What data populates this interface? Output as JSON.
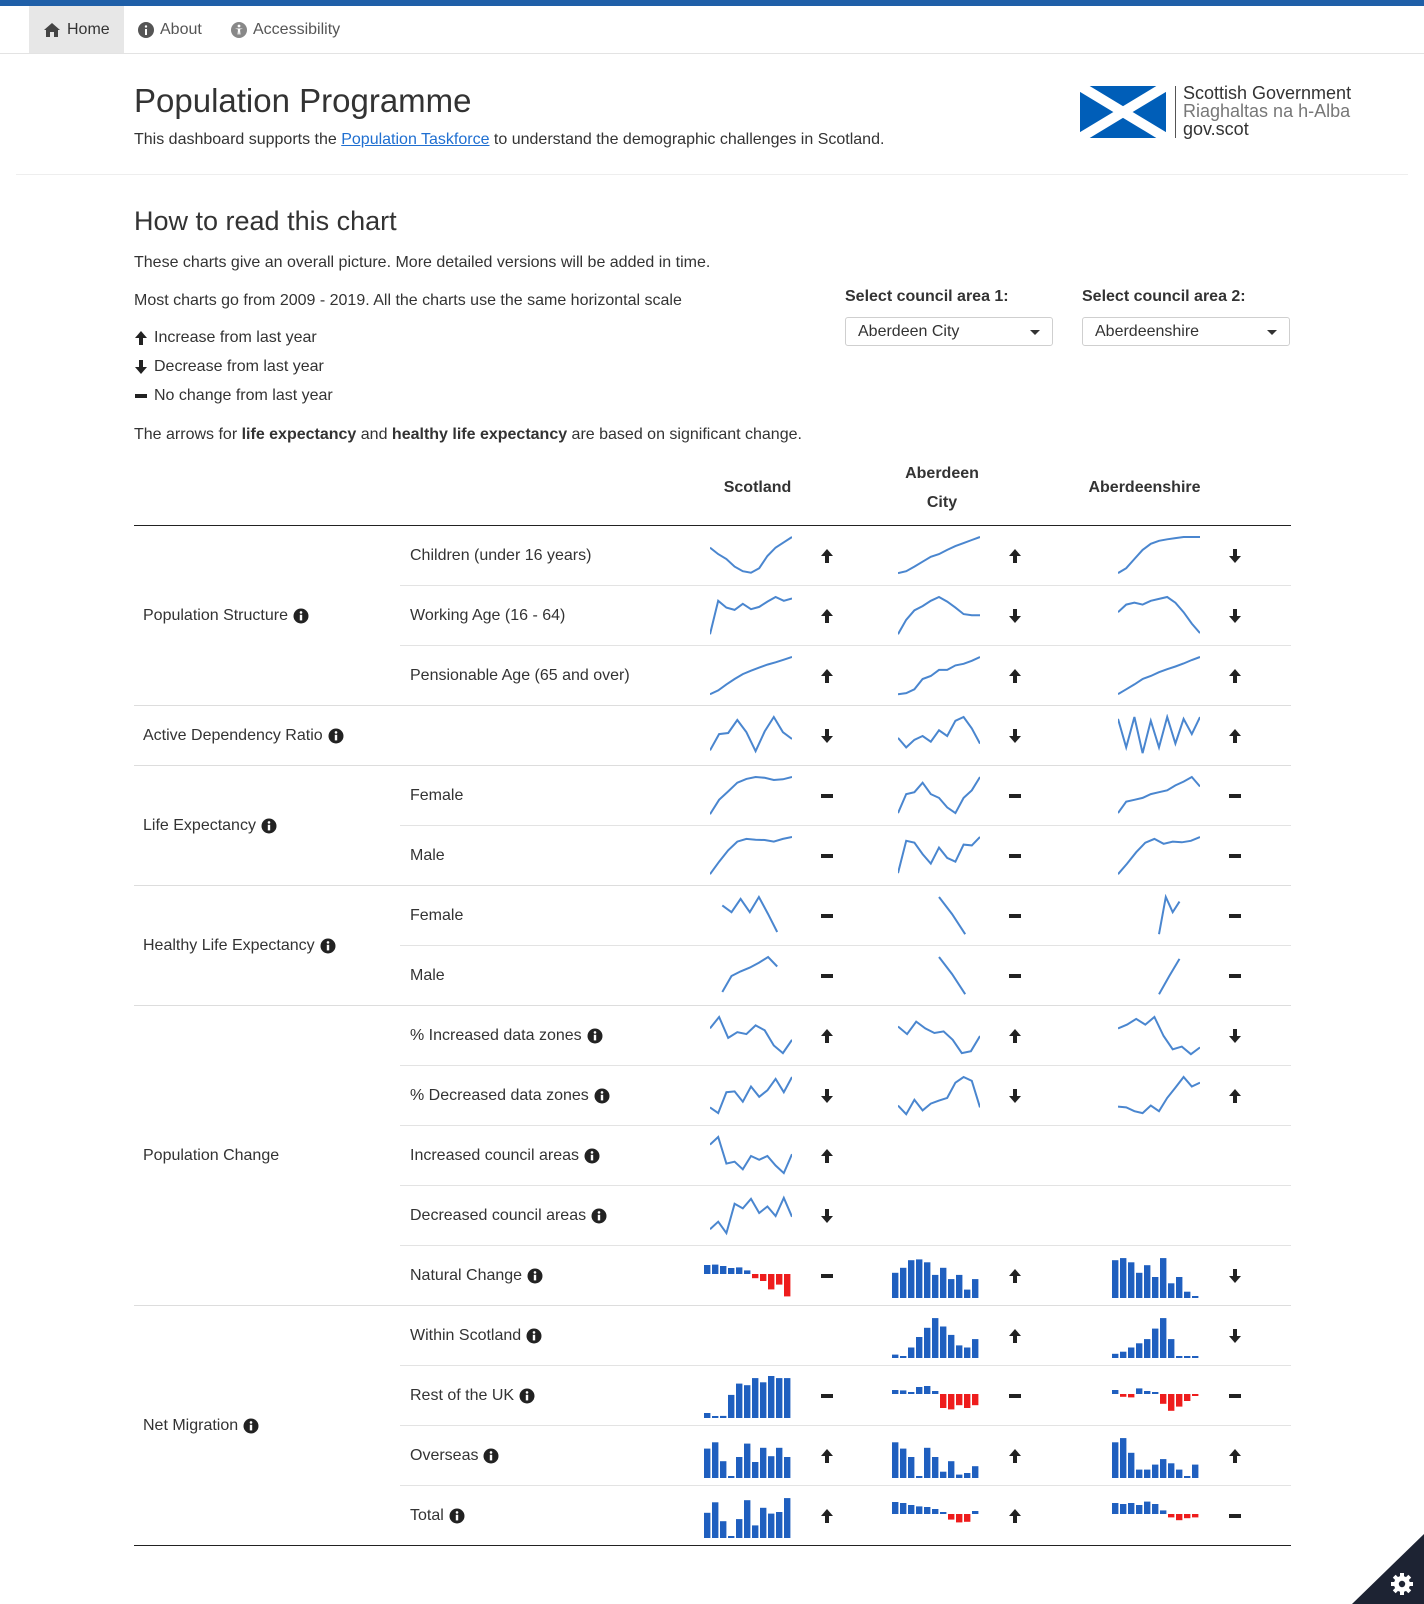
{
  "nav": {
    "items": [
      {
        "label": "Home",
        "icon": "home-icon",
        "active": true
      },
      {
        "label": "About",
        "icon": "info-icon",
        "active": false
      },
      {
        "label": "Accessibility",
        "icon": "accessibility-icon",
        "active": false
      }
    ]
  },
  "header": {
    "title": "Population Programme",
    "subtitle_before": "This dashboard supports the ",
    "subtitle_link": "Population Taskforce",
    "subtitle_after": " to understand the demographic challenges in Scotland.",
    "logo_lines": [
      "Scottish Government",
      "Riaghaltas na h-Alba",
      "gov.scot"
    ]
  },
  "guide": {
    "heading": "How to read this chart",
    "line1": "These charts give an overall picture. More detailed versions will be added in time.",
    "line2": "Most charts go from 2009 - 2019. All the charts use the same horizontal scale",
    "legend_up": "Increase from last year",
    "legend_down": "Decrease from last year",
    "legend_same": "No change from last year",
    "note_a": "The arrows for ",
    "note_b": "life expectancy",
    "note_c": " and ",
    "note_d": "healthy life expectancy",
    "note_e": " are based on significant change."
  },
  "selectors": {
    "area1_label": "Select council area 1:",
    "area1_value": "Aberdeen City",
    "area2_label": "Select council area 2:",
    "area2_value": "Aberdeenshire"
  },
  "columns": [
    "Scotland",
    "Aberdeen City",
    "Aberdeenshire"
  ],
  "colors": {
    "line": "#4a86cf",
    "bar_pos": "#1f5fbf",
    "bar_neg": "#ee1c1c",
    "brand": "#005eb8"
  },
  "groups": [
    {
      "label": "Population Structure",
      "info": true
    },
    {
      "label": "Active Dependency Ratio",
      "info": true
    },
    {
      "label": "Life Expectancy",
      "info": true
    },
    {
      "label": "Healthy Life Expectancy",
      "info": true
    },
    {
      "label": "Population Change",
      "info": false
    },
    {
      "label": "Net Migration",
      "info": true
    }
  ],
  "rows": [
    {
      "group": 0,
      "label": "Children (under 16 years)",
      "info": false,
      "type": "line",
      "cells": [
        {
          "v": [
            0.72,
            0.55,
            0.42,
            0.22,
            0.1,
            0.06,
            0.18,
            0.5,
            0.72,
            0.86,
            1.0
          ],
          "arrow": "up"
        },
        {
          "v": [
            0.05,
            0.1,
            0.22,
            0.35,
            0.48,
            0.55,
            0.66,
            0.76,
            0.84,
            0.92,
            1.0
          ],
          "arrow": "up"
        },
        {
          "v": [
            0.05,
            0.18,
            0.42,
            0.66,
            0.82,
            0.9,
            0.94,
            0.97,
            1.0,
            1.0,
            1.0
          ],
          "arrow": "down"
        }
      ]
    },
    {
      "group": 0,
      "label": "Working Age (16 - 64)",
      "info": false,
      "type": "line",
      "cells": [
        {
          "v": [
            0.02,
            0.9,
            0.72,
            0.66,
            0.82,
            0.68,
            0.74,
            0.88,
            1.0,
            0.9,
            0.96
          ],
          "arrow": "up"
        },
        {
          "v": [
            0.02,
            0.4,
            0.65,
            0.76,
            0.9,
            1.0,
            0.88,
            0.72,
            0.55,
            0.52,
            0.52
          ],
          "arrow": "down"
        },
        {
          "v": [
            0.6,
            0.8,
            0.85,
            0.8,
            0.9,
            0.95,
            1.0,
            0.85,
            0.6,
            0.3,
            0.05
          ],
          "arrow": "down"
        }
      ]
    },
    {
      "group": 0,
      "label": "Pensionable Age (65 and over)",
      "info": false,
      "type": "line",
      "cells": [
        {
          "v": [
            0.02,
            0.12,
            0.28,
            0.42,
            0.55,
            0.64,
            0.72,
            0.8,
            0.86,
            0.93,
            1.0
          ],
          "arrow": "up"
        },
        {
          "v": [
            0.02,
            0.05,
            0.15,
            0.42,
            0.5,
            0.66,
            0.66,
            0.78,
            0.82,
            0.9,
            1.0
          ],
          "arrow": "up"
        },
        {
          "v": [
            0.02,
            0.15,
            0.28,
            0.42,
            0.5,
            0.6,
            0.68,
            0.75,
            0.83,
            0.92,
            1.0
          ],
          "arrow": "up"
        }
      ]
    },
    {
      "group": 1,
      "label": "",
      "info": false,
      "type": "line",
      "cells": [
        {
          "v": [
            0.12,
            0.55,
            0.58,
            0.92,
            0.6,
            0.1,
            0.62,
            1.0,
            0.6,
            0.42
          ],
          "arrow": "down"
        },
        {
          "v": [
            0.45,
            0.2,
            0.4,
            0.5,
            0.35,
            0.65,
            0.5,
            0.9,
            1.0,
            0.7,
            0.3
          ],
          "arrow": "down"
        },
        {
          "v": [
            0.95,
            0.2,
            1.0,
            0.05,
            0.9,
            0.2,
            1.0,
            0.3,
            0.95,
            0.55,
            1.0
          ],
          "arrow": "up"
        }
      ]
    },
    {
      "group": 2,
      "label": "Female",
      "info": false,
      "type": "line",
      "cells": [
        {
          "v": [
            0.02,
            0.4,
            0.62,
            0.85,
            0.95,
            1.0,
            0.98,
            0.92,
            0.94,
            1.0
          ],
          "arrow": "same"
        },
        {
          "v": [
            0.05,
            0.55,
            0.6,
            0.85,
            0.55,
            0.45,
            0.2,
            0.05,
            0.45,
            0.65,
            1.0
          ],
          "arrow": "same"
        },
        {
          "v": [
            0.05,
            0.35,
            0.4,
            0.45,
            0.55,
            0.6,
            0.65,
            0.78,
            0.88,
            1.0,
            0.75
          ],
          "arrow": "same"
        }
      ]
    },
    {
      "group": 2,
      "label": "Male",
      "info": false,
      "type": "line",
      "cells": [
        {
          "v": [
            0.02,
            0.35,
            0.65,
            0.88,
            0.95,
            0.93,
            0.92,
            0.88,
            0.95,
            1.0
          ],
          "arrow": "same"
        },
        {
          "v": [
            0.05,
            0.9,
            0.85,
            0.55,
            0.3,
            0.72,
            0.45,
            0.35,
            0.8,
            0.78,
            1.0
          ],
          "arrow": "same"
        },
        {
          "v": [
            0.02,
            0.3,
            0.6,
            0.85,
            0.95,
            0.82,
            0.88,
            0.86,
            0.9,
            1.0
          ],
          "arrow": "same"
        }
      ]
    },
    {
      "group": 3,
      "label": "Female",
      "info": false,
      "type": "line",
      "cells": [
        {
          "v": [
            0.78,
            0.6,
            0.95,
            0.6,
            1.0,
            0.55,
            0.08
          ],
          "arrow": "same",
          "span": [
            0.15,
            0.82
          ]
        },
        {
          "v": [
            1.0,
            0.55,
            0.02
          ],
          "arrow": "same",
          "span": [
            0.5,
            0.82
          ]
        },
        {
          "v": [
            0.02,
            1.0,
            0.6,
            0.88
          ],
          "arrow": "same",
          "span": [
            0.5,
            0.75
          ]
        }
      ]
    },
    {
      "group": 3,
      "label": "Male",
      "info": false,
      "type": "line",
      "cells": [
        {
          "v": [
            0.08,
            0.5,
            0.62,
            0.72,
            0.85,
            1.0,
            0.75
          ],
          "arrow": "same",
          "span": [
            0.15,
            0.82
          ]
        },
        {
          "v": [
            1.0,
            0.55,
            0.02
          ],
          "arrow": "same",
          "span": [
            0.5,
            0.82
          ]
        },
        {
          "v": [
            0.02,
            0.5,
            0.95
          ],
          "arrow": "same",
          "span": [
            0.5,
            0.75
          ]
        }
      ]
    },
    {
      "group": 4,
      "label": "% Increased data zones",
      "info": true,
      "type": "line",
      "cells": [
        {
          "v": [
            0.7,
            1.0,
            0.45,
            0.6,
            0.55,
            0.78,
            0.65,
            0.25,
            0.05,
            0.4
          ],
          "arrow": "up"
        },
        {
          "v": [
            0.75,
            0.55,
            0.88,
            0.7,
            0.58,
            0.62,
            0.4,
            0.05,
            0.1,
            0.5
          ],
          "arrow": "up"
        },
        {
          "v": [
            0.7,
            0.8,
            0.95,
            0.8,
            1.0,
            0.5,
            0.15,
            0.22,
            0.02,
            0.2
          ],
          "arrow": "down"
        }
      ]
    },
    {
      "group": 4,
      "label": "% Decreased data zones",
      "info": true,
      "type": "line",
      "cells": [
        {
          "v": [
            0.2,
            0.05,
            0.6,
            0.62,
            0.35,
            0.75,
            0.48,
            0.65,
            0.95,
            0.6,
            1.0
          ],
          "arrow": "down"
        },
        {
          "v": [
            0.25,
            0.02,
            0.4,
            0.12,
            0.3,
            0.38,
            0.45,
            0.85,
            1.0,
            0.9,
            0.2
          ],
          "arrow": "down"
        },
        {
          "v": [
            0.22,
            0.2,
            0.1,
            0.05,
            0.25,
            0.1,
            0.45,
            0.72,
            1.0,
            0.75,
            0.85
          ],
          "arrow": "up"
        }
      ]
    },
    {
      "group": 4,
      "label": "Increased council areas",
      "info": true,
      "type": "line",
      "cells": [
        {
          "v": [
            0.8,
            1.0,
            0.3,
            0.35,
            0.15,
            0.5,
            0.4,
            0.5,
            0.25,
            0.05,
            0.55
          ],
          "arrow": "up"
        },
        null,
        null
      ]
    },
    {
      "group": 4,
      "label": "Decreased council areas",
      "info": true,
      "type": "line",
      "cells": [
        {
          "v": [
            0.15,
            0.35,
            0.05,
            0.82,
            0.7,
            0.95,
            0.58,
            0.75,
            0.5,
            0.98,
            0.48
          ],
          "arrow": "down"
        },
        null,
        null
      ]
    },
    {
      "group": 4,
      "label": "Natural Change",
      "info": true,
      "type": "bar",
      "cells": [
        {
          "v": [
            0.45,
            0.47,
            0.4,
            0.3,
            0.33,
            0.18,
            -0.15,
            -0.25,
            -0.55,
            -0.38,
            -0.8
          ],
          "arrow": "same"
        },
        {
          "v": [
            0.6,
            0.72,
            0.9,
            0.92,
            0.85,
            0.55,
            0.72,
            0.45,
            0.55,
            0.2,
            0.45
          ],
          "arrow": "up"
        },
        {
          "v": [
            0.9,
            0.95,
            0.85,
            0.6,
            0.78,
            0.5,
            0.95,
            0.35,
            0.5,
            0.15,
            0.03
          ],
          "arrow": "down"
        }
      ]
    },
    {
      "group": 5,
      "label": "Within Scotland",
      "info": true,
      "type": "bar",
      "cells": [
        null,
        {
          "v": [
            0.08,
            0.03,
            0.25,
            0.5,
            0.72,
            0.95,
            0.75,
            0.55,
            0.3,
            0.25,
            0.45
          ],
          "arrow": "up"
        },
        {
          "v": [
            0.1,
            0.15,
            0.25,
            0.35,
            0.45,
            0.7,
            0.95,
            0.45,
            0.03,
            0.04,
            0.02
          ],
          "arrow": "down"
        }
      ]
    },
    {
      "group": 5,
      "label": "Rest of the UK",
      "info": true,
      "type": "bar",
      "cells": [
        {
          "v": [
            0.12,
            0.03,
            0.05,
            0.55,
            0.82,
            0.78,
            0.95,
            0.85,
            1.0,
            0.95,
            0.95
          ],
          "arrow": "same"
        },
        {
          "v": [
            0.2,
            0.18,
            0.1,
            0.35,
            0.4,
            0.15,
            -0.5,
            -0.55,
            -0.4,
            -0.5,
            -0.4
          ],
          "arrow": "same"
        },
        {
          "v": [
            0.2,
            -0.1,
            -0.12,
            0.28,
            0.15,
            0.1,
            -0.35,
            -0.6,
            -0.45,
            -0.25,
            -0.06
          ],
          "arrow": "same"
        }
      ]
    },
    {
      "group": 5,
      "label": "Overseas",
      "info": true,
      "type": "bar",
      "cells": [
        {
          "v": [
            0.7,
            0.85,
            0.4,
            0.02,
            0.5,
            0.82,
            0.38,
            0.72,
            0.52,
            0.72,
            0.5
          ],
          "arrow": "up"
        },
        {
          "v": [
            0.85,
            0.7,
            0.5,
            0.03,
            0.72,
            0.5,
            0.15,
            0.4,
            0.08,
            0.12,
            0.28
          ],
          "arrow": "up"
        },
        {
          "v": [
            0.85,
            0.95,
            0.6,
            0.2,
            0.2,
            0.32,
            0.45,
            0.35,
            0.2,
            0.02,
            0.32
          ],
          "arrow": "up"
        }
      ]
    },
    {
      "group": 5,
      "label": "Total",
      "info": true,
      "type": "bar",
      "cells": [
        {
          "v": [
            0.6,
            0.85,
            0.4,
            0.02,
            0.45,
            0.9,
            0.3,
            0.72,
            0.58,
            0.62,
            0.95
          ],
          "arrow": "up"
        },
        {
          "v": [
            0.6,
            0.55,
            0.45,
            0.38,
            0.35,
            0.25,
            0.05,
            -0.2,
            -0.3,
            -0.28,
            0.15
          ],
          "arrow": "up"
        },
        {
          "v": [
            0.55,
            0.5,
            0.55,
            0.45,
            0.62,
            0.5,
            0.18,
            -0.12,
            -0.22,
            -0.15,
            -0.12
          ],
          "arrow": "same"
        }
      ]
    }
  ],
  "settings_icon": "gear-icon"
}
